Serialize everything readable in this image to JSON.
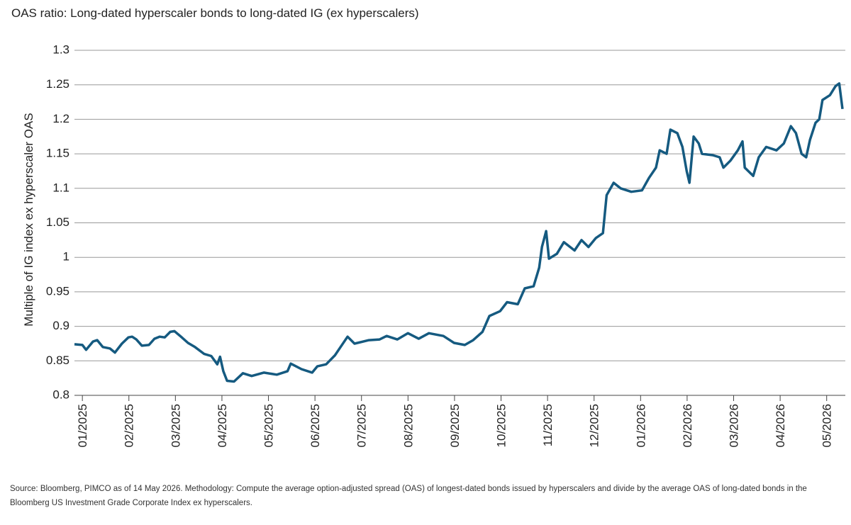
{
  "chart_data": {
    "type": "line",
    "title": "OAS ratio: Long-dated hyperscaler bonds to long-dated IG (ex hyperscalers)",
    "y_label": "Multiple of IG index ex hyperscaler OAS",
    "source": "Source: Bloomberg, PIMCO as of 14 May 2026. Methodology: Compute the average option-adjusted spread (OAS) of longest-dated bonds issued by hyperscalers and divide by the average OAS of long-dated bonds in the Bloomberg US Investment Grade Corporate Index ex hyperscalers.",
    "x": [
      -0.17,
      0,
      0.08,
      0.23,
      0.32,
      0.44,
      0.59,
      0.7,
      0.85,
      0.99,
      1.07,
      1.16,
      1.28,
      1.43,
      1.55,
      1.66,
      1.77,
      1.89,
      1.98,
      2.12,
      2.27,
      2.42,
      2.62,
      2.77,
      2.9,
      2.96,
      3.03,
      3.11,
      3.26,
      3.45,
      3.64,
      3.9,
      4.18,
      4.41,
      4.48,
      4.71,
      4.94,
      5.05,
      5.24,
      5.43,
      5.55,
      5.7,
      5.85,
      6.16,
      6.39,
      6.54,
      6.77,
      7.0,
      7.23,
      7.45,
      7.76,
      7.99,
      8.22,
      8.4,
      8.6,
      8.75,
      8.98,
      9.13,
      9.36,
      9.51,
      9.7,
      9.82,
      9.88,
      9.97,
      10.03,
      10.2,
      10.35,
      10.58,
      10.73,
      10.88,
      11.04,
      11.19,
      11.27,
      11.42,
      11.57,
      11.8,
      12.03,
      12.18,
      12.33,
      12.41,
      12.56,
      12.64,
      12.79,
      12.9,
      12.99,
      13.05,
      13.14,
      13.25,
      13.32,
      13.55,
      13.7,
      13.78,
      13.93,
      14.09,
      14.19,
      14.24,
      14.42,
      14.54,
      14.7,
      14.92,
      15.08,
      15.23,
      15.34,
      15.46,
      15.56,
      15.64,
      15.76,
      15.84,
      15.91,
      16.07,
      16.19,
      16.27,
      16.34
    ],
    "series": [
      {
        "name": "OAS ratio",
        "color": "#155a80",
        "values": [
          0.874,
          0.873,
          0.866,
          0.878,
          0.88,
          0.87,
          0.868,
          0.862,
          0.875,
          0.884,
          0.885,
          0.881,
          0.872,
          0.873,
          0.882,
          0.885,
          0.884,
          0.892,
          0.893,
          0.885,
          0.876,
          0.87,
          0.86,
          0.857,
          0.845,
          0.856,
          0.835,
          0.821,
          0.82,
          0.832,
          0.828,
          0.833,
          0.83,
          0.835,
          0.846,
          0.838,
          0.833,
          0.842,
          0.845,
          0.858,
          0.87,
          0.885,
          0.875,
          0.88,
          0.881,
          0.886,
          0.881,
          0.89,
          0.882,
          0.89,
          0.886,
          0.876,
          0.873,
          0.88,
          0.892,
          0.915,
          0.922,
          0.935,
          0.932,
          0.955,
          0.958,
          0.985,
          1.015,
          1.038,
          0.998,
          1.005,
          1.022,
          1.01,
          1.025,
          1.015,
          1.028,
          1.035,
          1.09,
          1.108,
          1.1,
          1.095,
          1.097,
          1.115,
          1.13,
          1.155,
          1.15,
          1.185,
          1.18,
          1.16,
          1.125,
          1.108,
          1.175,
          1.165,
          1.15,
          1.148,
          1.145,
          1.13,
          1.14,
          1.155,
          1.168,
          1.13,
          1.118,
          1.145,
          1.16,
          1.155,
          1.165,
          1.19,
          1.18,
          1.15,
          1.145,
          1.17,
          1.195,
          1.2,
          1.228,
          1.235,
          1.248,
          1.252,
          1.215
        ]
      }
    ],
    "xlim": [
      -0.17,
      16.34
    ],
    "xticks": [
      {
        "value": 0,
        "label": "01/2025"
      },
      {
        "value": 1,
        "label": "02/2025"
      },
      {
        "value": 2,
        "label": "03/2025"
      },
      {
        "value": 3,
        "label": "04/2025"
      },
      {
        "value": 4,
        "label": "05/2025"
      },
      {
        "value": 5,
        "label": "06/2025"
      },
      {
        "value": 6,
        "label": "07/2025"
      },
      {
        "value": 7,
        "label": "08/2025"
      },
      {
        "value": 8,
        "label": "09/2025"
      },
      {
        "value": 9,
        "label": "10/2025"
      },
      {
        "value": 10,
        "label": "11/2025"
      },
      {
        "value": 11,
        "label": "12/2025"
      },
      {
        "value": 12,
        "label": "01/2026"
      },
      {
        "value": 13,
        "label": "02/2026"
      },
      {
        "value": 14,
        "label": "03/2026"
      },
      {
        "value": 15,
        "label": "04/2026"
      },
      {
        "value": 16,
        "label": "05/2026"
      }
    ],
    "ylim": [
      0.8,
      1.3
    ],
    "yticks": [
      0.8,
      0.85,
      0.9,
      0.95,
      1,
      1.05,
      1.1,
      1.15,
      1.2,
      1.25,
      1.3
    ],
    "grid": true
  }
}
